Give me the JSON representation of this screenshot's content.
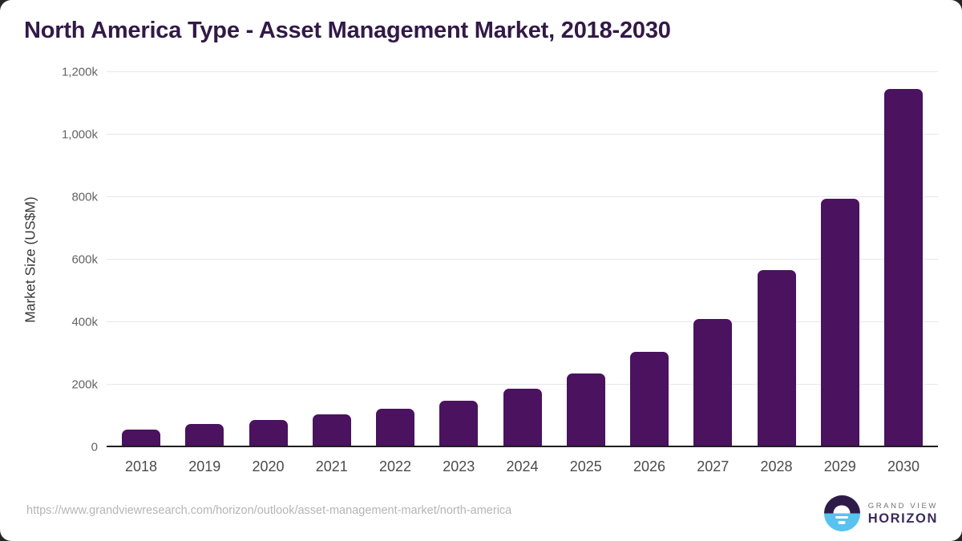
{
  "title": "North America Type - Asset Management Market, 2018-2030",
  "chart_data": {
    "type": "bar",
    "title": "North America Type - Asset Management Market, 2018-2030",
    "categories": [
      "2018",
      "2019",
      "2020",
      "2021",
      "2022",
      "2023",
      "2024",
      "2025",
      "2026",
      "2027",
      "2028",
      "2029",
      "2030"
    ],
    "values": [
      56,
      74,
      86,
      104,
      124,
      150,
      186,
      237,
      306,
      411,
      566,
      795,
      1146
    ],
    "value_unit": "k (thousand US$M)",
    "xlabel": "",
    "ylabel": "Market Size (US$M)",
    "ylim": [
      0,
      1200
    ],
    "yticks": [
      0,
      200,
      400,
      600,
      800,
      1000,
      1200
    ],
    "ytick_labels": [
      "0",
      "200k",
      "400k",
      "600k",
      "800k",
      "1,000k",
      "1,200k"
    ],
    "grid": true,
    "legend": "none",
    "bar_color": "#4a125f"
  },
  "footer": {
    "source_url": "https://www.grandviewresearch.com/horizon/outlook/asset-management-market/north-america",
    "logo": {
      "line1": "GRAND VIEW",
      "line2": "HORIZON"
    }
  },
  "colors": {
    "title": "#321947",
    "bar": "#4a125f",
    "gridline": "#e8e8e8",
    "axis_line": "#1f1f1f",
    "tick_label": "#4b4b4b",
    "url_text": "#b5b5b5",
    "logo_purple": "#2e1b47",
    "logo_blue": "#57c3ee"
  }
}
